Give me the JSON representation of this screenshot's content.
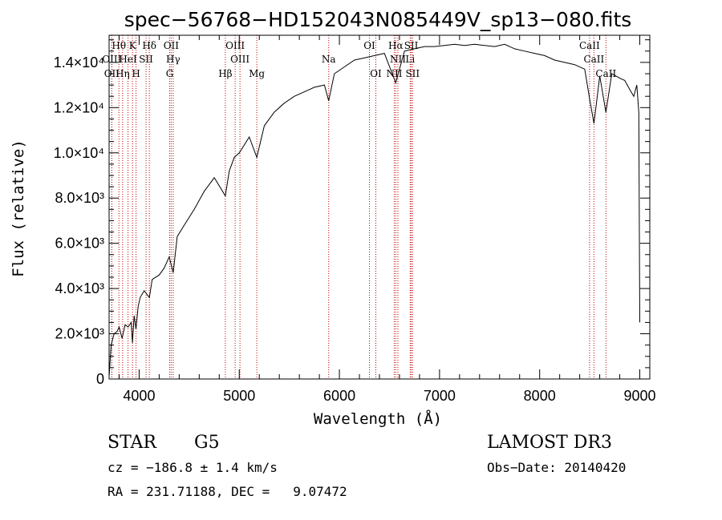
{
  "chart_data": {
    "type": "line",
    "title": "spec−56768−HD152043N085449V_sp13−080.fits",
    "xlabel": "Wavelength (Å)",
    "ylabel": "Flux (relative)",
    "xlim": [
      3700,
      9100
    ],
    "ylim": [
      0,
      15200
    ],
    "xticks": [
      {
        "value": 4000,
        "label": "4000"
      },
      {
        "value": 5000,
        "label": "5000"
      },
      {
        "value": 6000,
        "label": "6000"
      },
      {
        "value": 7000,
        "label": "7000"
      },
      {
        "value": 8000,
        "label": "8000"
      },
      {
        "value": 9000,
        "label": "9000"
      }
    ],
    "yticks": [
      {
        "value": 0,
        "label": "0"
      },
      {
        "value": 2000,
        "label": "2.0×10³"
      },
      {
        "value": 4000,
        "label": "4.0×10³"
      },
      {
        "value": 6000,
        "label": "6.0×10³"
      },
      {
        "value": 8000,
        "label": "8.0×10³"
      },
      {
        "value": 10000,
        "label": "1.0×10⁴"
      },
      {
        "value": 12000,
        "label": "1.2×10⁴"
      },
      {
        "value": 14000,
        "label": "1.4×10⁴"
      }
    ],
    "series": [
      {
        "name": "flux",
        "x": [
          3700,
          3720,
          3750,
          3780,
          3800,
          3830,
          3860,
          3890,
          3920,
          3933,
          3950,
          3968,
          3990,
          4010,
          4050,
          4102,
          4130,
          4200,
          4250,
          4300,
          4340,
          4380,
          4450,
          4550,
          4650,
          4750,
          4861,
          4900,
          4950,
          5000,
          5100,
          5175,
          5250,
          5350,
          5450,
          5550,
          5650,
          5750,
          5850,
          5893,
          5950,
          6050,
          6150,
          6250,
          6350,
          6450,
          6563,
          6650,
          6750,
          6850,
          6950,
          7050,
          7150,
          7250,
          7350,
          7450,
          7550,
          7650,
          7750,
          7850,
          7950,
          8050,
          8150,
          8250,
          8350,
          8450,
          8498,
          8542,
          8600,
          8662,
          8720,
          8800,
          8850,
          8900,
          8940,
          8970,
          8990,
          9000
        ],
        "y": [
          100,
          1500,
          2000,
          2100,
          2300,
          1800,
          2400,
          2300,
          2500,
          1600,
          2800,
          2200,
          3200,
          3600,
          3900,
          3600,
          4400,
          4600,
          4900,
          5400,
          4700,
          6300,
          6800,
          7500,
          8300,
          8900,
          8100,
          9200,
          9800,
          10000,
          10700,
          9800,
          11200,
          11800,
          12200,
          12500,
          12700,
          12900,
          13000,
          12300,
          13500,
          13800,
          14100,
          14200,
          14300,
          14400,
          13100,
          14500,
          14600,
          14700,
          14700,
          14750,
          14800,
          14750,
          14800,
          14750,
          14700,
          14800,
          14600,
          14500,
          14400,
          14300,
          14100,
          14000,
          13900,
          13700,
          12400,
          11300,
          13400,
          11800,
          13500,
          13300,
          13200,
          12800,
          12500,
          13000,
          11800,
          2500
        ]
      }
    ],
    "spectral_lines": [
      {
        "label": "Hθ",
        "wavelength": 3798,
        "row": 0
      },
      {
        "label": "K",
        "wavelength": 3934,
        "row": 0
      },
      {
        "label": "Hδ",
        "wavelength": 4102,
        "row": 0
      },
      {
        "label": "OII",
        "wavelength": 4320,
        "row": 0
      },
      {
        "label": "OIII",
        "wavelength": 4959,
        "row": 0
      },
      {
        "label": "OI",
        "wavelength": 6300,
        "row": 0
      },
      {
        "label": "Hα",
        "wavelength": 6563,
        "row": 0
      },
      {
        "label": "SII",
        "wavelength": 6717,
        "row": 0
      },
      {
        "label": "CaII",
        "wavelength": 8498,
        "row": 0
      },
      {
        "label": "OIII",
        "wavelength": 3727,
        "row": 1
      },
      {
        "label": "HeI",
        "wavelength": 3889,
        "row": 1
      },
      {
        "label": "SII",
        "wavelength": 4069,
        "row": 1
      },
      {
        "label": "Hγ",
        "wavelength": 4340,
        "row": 1
      },
      {
        "label": "OIII",
        "wavelength": 5007,
        "row": 1
      },
      {
        "label": "Na",
        "wavelength": 5893,
        "row": 1
      },
      {
        "label": "NII",
        "wavelength": 6584,
        "row": 1
      },
      {
        "label": "Li",
        "wavelength": 6707,
        "row": 1
      },
      {
        "label": "CaII",
        "wavelength": 8542,
        "row": 1
      },
      {
        "label": "OII",
        "wavelength": 3727,
        "row": 2
      },
      {
        "label": "Hη",
        "wavelength": 3835,
        "row": 2
      },
      {
        "label": "H",
        "wavelength": 3969,
        "row": 2
      },
      {
        "label": "G",
        "wavelength": 4305,
        "row": 2
      },
      {
        "label": "Hβ",
        "wavelength": 4861,
        "row": 2
      },
      {
        "label": "Mg",
        "wavelength": 5175,
        "row": 2
      },
      {
        "label": "OI",
        "wavelength": 6364,
        "row": 2
      },
      {
        "label": "NII",
        "wavelength": 6548,
        "row": 2
      },
      {
        "label": "SII",
        "wavelength": 6731,
        "row": 2
      },
      {
        "label": "CaII",
        "wavelength": 8662,
        "row": 2
      }
    ]
  },
  "info": {
    "object_class": "STAR",
    "subclass": "G5",
    "survey": "LAMOST DR3",
    "cz": "cz = −186.8 ± 1.4 km/s",
    "obs_date": "Obs−Date: 20140420",
    "coords": "RA = 231.71188, DEC =   9.07472"
  }
}
